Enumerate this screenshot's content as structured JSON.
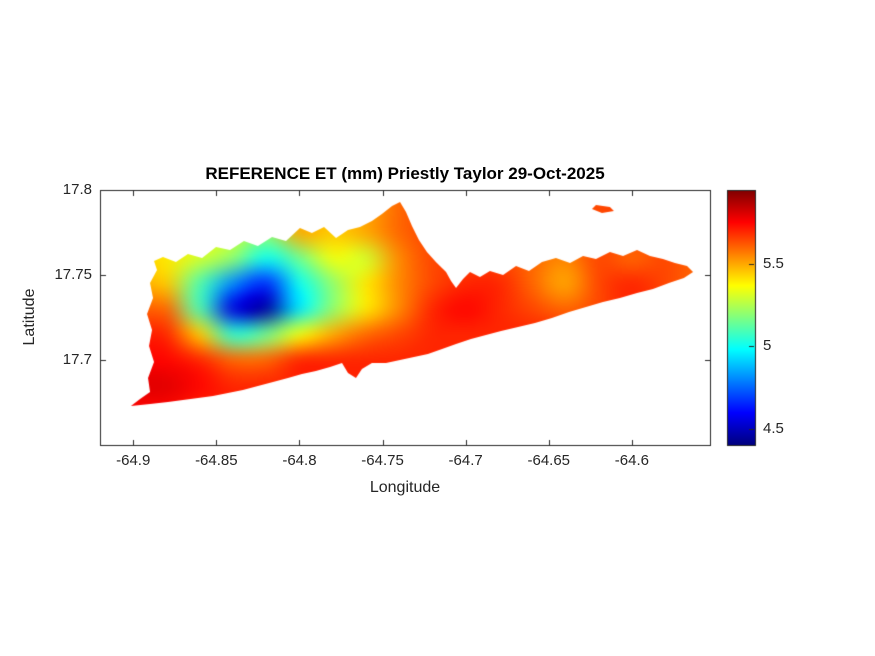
{
  "figure": {
    "background": "#ffffff",
    "text_color": "#262626"
  },
  "chart_data": {
    "type": "heatmap",
    "title": "REFERENCE ET (mm) Priestly Taylor 29-Oct-2025",
    "xlabel": "Longitude",
    "ylabel": "Latitude",
    "xlim": [
      -64.92,
      -64.553
    ],
    "ylim": [
      17.65,
      17.8
    ],
    "clim": [
      4.4,
      5.95
    ],
    "colormap": "jet",
    "legend": "none",
    "grid_lines": "off",
    "xticks": [
      -64.9,
      -64.85,
      -64.8,
      -64.75,
      -64.7,
      -64.65,
      -64.6
    ],
    "xtick_labels": [
      "-64.9",
      "-64.85",
      "-64.8",
      "-64.75",
      "-64.7",
      "-64.65",
      "-64.6"
    ],
    "yticks": [
      17.7,
      17.75,
      17.8
    ],
    "ytick_labels": [
      "17.7",
      "17.75",
      "17.8"
    ],
    "colorbar": {
      "position": "right",
      "ticks": [
        4.5,
        5,
        5.5
      ],
      "tick_labels": [
        "4.5",
        "5",
        "5.5"
      ]
    },
    "grid": {
      "lons": [
        -64.9,
        -64.88,
        -64.86,
        -64.84,
        -64.82,
        -64.8,
        -64.78,
        -64.76,
        -64.74,
        -64.72,
        -64.7,
        -64.68,
        -64.66,
        -64.64,
        -64.62,
        -64.6,
        -64.58,
        -64.56
      ],
      "lats": [
        17.775,
        17.76,
        17.745,
        17.73,
        17.715,
        17.7,
        17.685,
        17.67
      ],
      "values_mm": [
        [
          5.45,
          5.4,
          5.35,
          5.3,
          5.2,
          5.5,
          5.45,
          5.5,
          5.6,
          5.65,
          5.65,
          5.65,
          5.6,
          5.6,
          5.65,
          5.65,
          5.65,
          5.6
        ],
        [
          5.45,
          5.4,
          5.3,
          5.2,
          5.0,
          5.15,
          5.35,
          5.3,
          5.55,
          5.65,
          5.65,
          5.65,
          5.6,
          5.55,
          5.65,
          5.6,
          5.65,
          5.6
        ],
        [
          5.5,
          5.45,
          5.1,
          4.8,
          4.65,
          5.0,
          5.2,
          5.4,
          5.55,
          5.65,
          5.7,
          5.7,
          5.6,
          5.5,
          5.65,
          5.7,
          5.65,
          5.6
        ],
        [
          5.6,
          5.6,
          5.1,
          4.55,
          4.45,
          4.95,
          5.2,
          5.4,
          5.55,
          5.7,
          5.75,
          5.7,
          5.65,
          5.6,
          5.65,
          5.7,
          5.65,
          5.6
        ],
        [
          5.7,
          5.7,
          5.45,
          5.05,
          5.15,
          5.35,
          5.5,
          5.6,
          5.65,
          5.7,
          5.7,
          5.7,
          5.7,
          5.7,
          5.7,
          5.7,
          5.7,
          5.7
        ],
        [
          5.75,
          5.75,
          5.7,
          5.6,
          5.6,
          5.7,
          5.7,
          5.7,
          5.7,
          5.7,
          5.7,
          5.7,
          5.7,
          5.7,
          5.7,
          5.7,
          5.7,
          5.7
        ],
        [
          5.8,
          5.8,
          5.75,
          5.7,
          5.7,
          5.7,
          5.7,
          5.7,
          5.7,
          5.7,
          5.7,
          5.7,
          5.7,
          5.7,
          5.7,
          5.7,
          5.7,
          5.7
        ],
        [
          5.75,
          5.75,
          5.7,
          5.7,
          5.7,
          5.7,
          5.7,
          5.7,
          5.7,
          5.7,
          5.7,
          5.7,
          5.7,
          5.7,
          5.7,
          5.7,
          5.7,
          5.7
        ]
      ]
    },
    "island_outline": [
      [
        -64.9014,
        17.6729
      ],
      [
        -64.8959,
        17.6771
      ],
      [
        -64.8899,
        17.6812
      ],
      [
        -64.8911,
        17.6894
      ],
      [
        -64.8875,
        17.6988
      ],
      [
        -64.8905,
        17.7082
      ],
      [
        -64.8887,
        17.7176
      ],
      [
        -64.8917,
        17.7271
      ],
      [
        -64.8881,
        17.7365
      ],
      [
        -64.8899,
        17.7453
      ],
      [
        -64.8857,
        17.7529
      ],
      [
        -64.8875,
        17.7582
      ],
      [
        -64.8821,
        17.7606
      ],
      [
        -64.8743,
        17.7576
      ],
      [
        -64.8671,
        17.7624
      ],
      [
        -64.8586,
        17.76
      ],
      [
        -64.8502,
        17.7665
      ],
      [
        -64.8418,
        17.7647
      ],
      [
        -64.8334,
        17.77
      ],
      [
        -64.825,
        17.7671
      ],
      [
        -64.8165,
        17.7724
      ],
      [
        -64.8081,
        17.77
      ],
      [
        -64.7997,
        17.7776
      ],
      [
        -64.7925,
        17.7747
      ],
      [
        -64.7852,
        17.7782
      ],
      [
        -64.778,
        17.7718
      ],
      [
        -64.7708,
        17.7765
      ],
      [
        -64.7636,
        17.7782
      ],
      [
        -64.7564,
        17.7818
      ],
      [
        -64.7504,
        17.7859
      ],
      [
        -64.7443,
        17.7906
      ],
      [
        -64.7395,
        17.7929
      ],
      [
        -64.7359,
        17.7871
      ],
      [
        -64.7323,
        17.7788
      ],
      [
        -64.7281,
        17.7706
      ],
      [
        -64.7233,
        17.7635
      ],
      [
        -64.7179,
        17.7576
      ],
      [
        -64.7118,
        17.7518
      ],
      [
        -64.7088,
        17.7465
      ],
      [
        -64.7058,
        17.7424
      ],
      [
        -64.7016,
        17.7477
      ],
      [
        -64.6974,
        17.7518
      ],
      [
        -64.6914,
        17.7488
      ],
      [
        -64.6854,
        17.7524
      ],
      [
        -64.6775,
        17.75
      ],
      [
        -64.6697,
        17.7553
      ],
      [
        -64.6619,
        17.7524
      ],
      [
        -64.6541,
        17.7576
      ],
      [
        -64.6457,
        17.76
      ],
      [
        -64.6372,
        17.7571
      ],
      [
        -64.6294,
        17.7612
      ],
      [
        -64.6216,
        17.7594
      ],
      [
        -64.6132,
        17.7635
      ],
      [
        -64.6053,
        17.7612
      ],
      [
        -64.5969,
        17.7647
      ],
      [
        -64.5891,
        17.7612
      ],
      [
        -64.5813,
        17.7594
      ],
      [
        -64.5741,
        17.7571
      ],
      [
        -64.5668,
        17.7553
      ],
      [
        -64.5632,
        17.7518
      ],
      [
        -64.5687,
        17.7482
      ],
      [
        -64.5777,
        17.7453
      ],
      [
        -64.5873,
        17.7418
      ],
      [
        -64.5969,
        17.7394
      ],
      [
        -64.6072,
        17.7365
      ],
      [
        -64.6174,
        17.7341
      ],
      [
        -64.6276,
        17.7312
      ],
      [
        -64.6378,
        17.7282
      ],
      [
        -64.6481,
        17.7247
      ],
      [
        -64.6583,
        17.7218
      ],
      [
        -64.6685,
        17.7194
      ],
      [
        -64.6787,
        17.7171
      ],
      [
        -64.6878,
        17.7147
      ],
      [
        -64.6968,
        17.7124
      ],
      [
        -64.7058,
        17.7094
      ],
      [
        -64.7142,
        17.7065
      ],
      [
        -64.7227,
        17.7035
      ],
      [
        -64.7311,
        17.7018
      ],
      [
        -64.7395,
        17.7
      ],
      [
        -64.7479,
        17.6982
      ],
      [
        -64.7564,
        17.6982
      ],
      [
        -64.7624,
        17.6947
      ],
      [
        -64.766,
        17.6894
      ],
      [
        -64.7708,
        17.6924
      ],
      [
        -64.7744,
        17.6982
      ],
      [
        -64.7816,
        17.6959
      ],
      [
        -64.7901,
        17.6935
      ],
      [
        -64.7985,
        17.6918
      ],
      [
        -64.8069,
        17.6894
      ],
      [
        -64.8159,
        17.6871
      ],
      [
        -64.825,
        17.6847
      ],
      [
        -64.834,
        17.6824
      ],
      [
        -64.843,
        17.6806
      ],
      [
        -64.852,
        17.6788
      ],
      [
        -64.861,
        17.6776
      ],
      [
        -64.8701,
        17.6765
      ],
      [
        -64.8791,
        17.6753
      ],
      [
        -64.8899,
        17.6741
      ]
    ],
    "islet_outline": [
      [
        -64.6216,
        17.7912
      ],
      [
        -64.6132,
        17.79
      ],
      [
        -64.6108,
        17.7876
      ],
      [
        -64.618,
        17.7865
      ],
      [
        -64.624,
        17.7888
      ]
    ]
  }
}
